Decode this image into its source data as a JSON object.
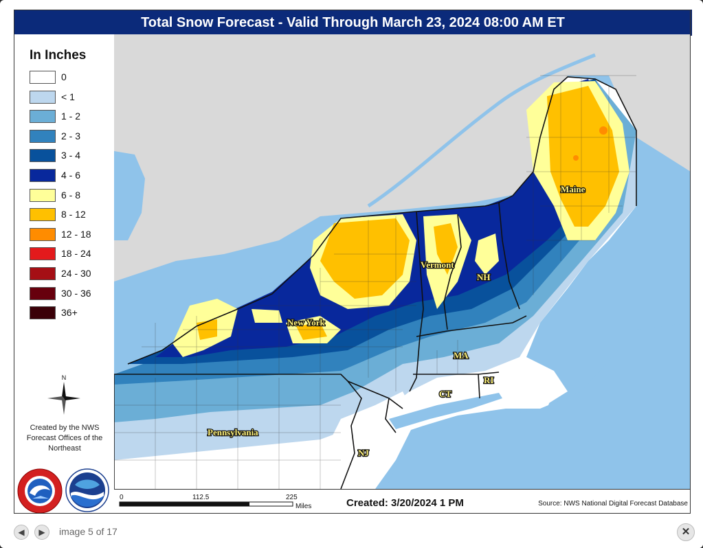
{
  "title": "Total Snow Forecast - Valid Through March 23, 2024 08:00 AM ET",
  "legend": {
    "title": "In Inches",
    "items": [
      {
        "label": "0",
        "color": "#ffffff"
      },
      {
        "label": "< 1",
        "color": "#bdd7ee"
      },
      {
        "label": "1 - 2",
        "color": "#6baed6"
      },
      {
        "label": "2 - 3",
        "color": "#3182bd"
      },
      {
        "label": "3 - 4",
        "color": "#08519c"
      },
      {
        "label": "4 - 6",
        "color": "#08289c"
      },
      {
        "label": "6 - 8",
        "color": "#ffff99"
      },
      {
        "label": "8 - 12",
        "color": "#ffc000"
      },
      {
        "label": "12 - 18",
        "color": "#ff8c00"
      },
      {
        "label": "18 - 24",
        "color": "#e31a1c"
      },
      {
        "label": "24 - 30",
        "color": "#a50f15"
      },
      {
        "label": "30 - 36",
        "color": "#67000d"
      },
      {
        "label": "36+",
        "color": "#3a0008"
      }
    ]
  },
  "north_label": "N",
  "credit": "Created by the NWS Forecast Offices of the Northeast",
  "logos": {
    "nws": "National Weather Service",
    "noaa": "NOAA"
  },
  "state_labels": {
    "maine": "Maine",
    "vermont": "Vermont",
    "nh": "NH",
    "new_york": "New York",
    "ma": "MA",
    "ri": "RI",
    "ct": "CT",
    "pennsylvania": "Pennsylvania",
    "nj": "NJ"
  },
  "scale": {
    "ticks": [
      "0",
      "112.5",
      "225"
    ],
    "unit": "Miles"
  },
  "created": "Created: 3/20/2024 1 PM",
  "source": "Source: NWS National Digital Forecast Database",
  "nav": {
    "prev_icon": "arrow-left-icon",
    "next_icon": "arrow-right-icon",
    "counter": "image 5 of 17",
    "close_icon": "close-icon"
  },
  "colors": {
    "ocean": "#8fc3ea",
    "canada": "#d9d9d9",
    "lake": "#8fc3ea",
    "header": "#0b2a7a"
  }
}
